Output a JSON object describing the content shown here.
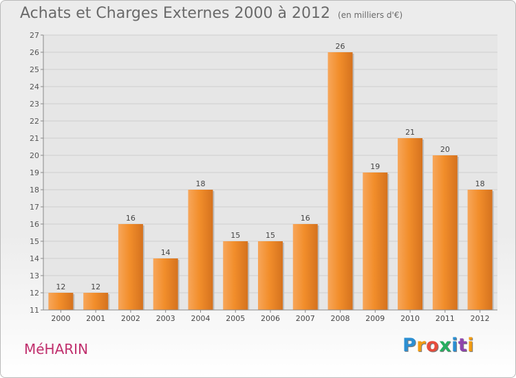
{
  "chart_data": {
    "type": "bar",
    "title": "Achats et Charges Externes 2000 à 2012",
    "subtitle": "(en milliers d'€)",
    "categories": [
      "2000",
      "2001",
      "2002",
      "2003",
      "2004",
      "2005",
      "2006",
      "2007",
      "2008",
      "2009",
      "2010",
      "2011",
      "2012"
    ],
    "values": [
      12,
      12,
      16,
      14,
      18,
      15,
      15,
      16,
      26,
      19,
      21,
      20,
      18
    ],
    "ylim": [
      11,
      27
    ],
    "yticks": [
      11,
      12,
      13,
      14,
      15,
      16,
      17,
      18,
      19,
      20,
      21,
      22,
      23,
      24,
      25,
      26,
      27
    ],
    "grid": true,
    "bar_color": "#f28e2b",
    "bar_color_light": "#f7a65a",
    "bar_color_dark": "#d5721e"
  },
  "place_name": "MéHARIN",
  "brand": {
    "letters": [
      "P",
      "r",
      "o",
      "x",
      "i",
      "t",
      "i"
    ],
    "colors": [
      "#2c8fd2",
      "#f39c12",
      "#e74c3c",
      "#27ae60",
      "#2c8fd2",
      "#8e44ad",
      "#f39c12"
    ]
  }
}
